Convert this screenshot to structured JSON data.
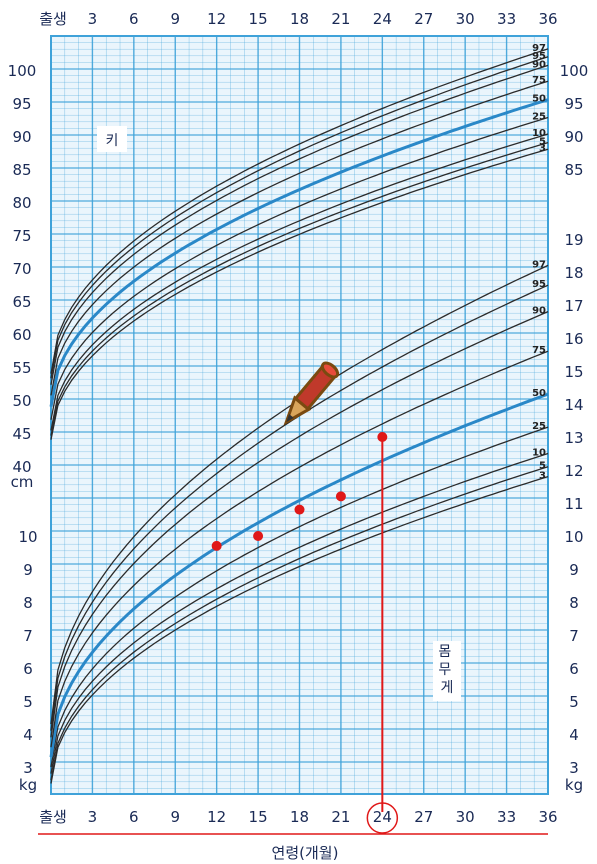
{
  "chart_data": {
    "type": "line",
    "title": "",
    "xlabel": "연령(개월)",
    "x_ticks": [
      "출생",
      "3",
      "6",
      "9",
      "12",
      "15",
      "18",
      "21",
      "24",
      "27",
      "30",
      "33",
      "36"
    ],
    "xlim": [
      0,
      36
    ],
    "highlight_month": "24",
    "grid": true,
    "colors": {
      "grid": "#3fa2d9",
      "median": "#2a88c8",
      "percentile": "#2b2b2b",
      "marker": "#e01818",
      "background": "#eaf5fc"
    },
    "height_panel": {
      "label": "키",
      "unit": "cm",
      "ylim": [
        40,
        104
      ],
      "left_ticks": [
        "100",
        "95",
        "90",
        "85",
        "80",
        "75",
        "70",
        "65",
        "60",
        "55",
        "50",
        "45",
        "40"
      ],
      "right_ticks": [
        "100",
        "95",
        "90",
        "85"
      ],
      "series": [
        {
          "name": "3",
          "start": 44.0,
          "end": 88.0
        },
        {
          "name": "5",
          "start": 44.6,
          "end": 89.0
        },
        {
          "name": "10",
          "start": 45.4,
          "end": 90.3
        },
        {
          "name": "25",
          "start": 47.0,
          "end": 92.8
        },
        {
          "name": "50",
          "start": 49.0,
          "end": 95.5
        },
        {
          "name": "75",
          "start": 50.7,
          "end": 98.3
        },
        {
          "name": "90",
          "start": 52.3,
          "end": 100.7
        },
        {
          "name": "95",
          "start": 53.3,
          "end": 102.0
        },
        {
          "name": "97",
          "start": 54.0,
          "end": 103.2
        }
      ]
    },
    "weight_panel": {
      "label": "몸무게",
      "unit": "kg",
      "ylim": [
        2.5,
        19.5
      ],
      "left_ticks": [
        "10",
        "9",
        "8",
        "7",
        "6",
        "5",
        "4",
        "3"
      ],
      "right_ticks": [
        "19",
        "18",
        "17",
        "16",
        "15",
        "14",
        "13",
        "12",
        "11",
        "10",
        "9",
        "8",
        "7",
        "6",
        "5",
        "4",
        "3"
      ],
      "series": [
        {
          "name": "3",
          "start": 2.5,
          "end": 11.8
        },
        {
          "name": "5",
          "start": 2.6,
          "end": 12.1
        },
        {
          "name": "10",
          "start": 2.8,
          "end": 12.5
        },
        {
          "name": "25",
          "start": 3.0,
          "end": 13.3
        },
        {
          "name": "50",
          "start": 3.3,
          "end": 14.3
        },
        {
          "name": "75",
          "start": 3.6,
          "end": 15.6
        },
        {
          "name": "90",
          "start": 3.9,
          "end": 16.8
        },
        {
          "name": "95",
          "start": 4.1,
          "end": 17.6
        },
        {
          "name": "97",
          "start": 4.3,
          "end": 18.2
        }
      ],
      "points": [
        {
          "x": 12,
          "y": 9.7
        },
        {
          "x": 15,
          "y": 10.0
        },
        {
          "x": 18,
          "y": 10.8
        },
        {
          "x": 21,
          "y": 11.2
        },
        {
          "x": 24,
          "y": 13.0
        }
      ]
    }
  }
}
